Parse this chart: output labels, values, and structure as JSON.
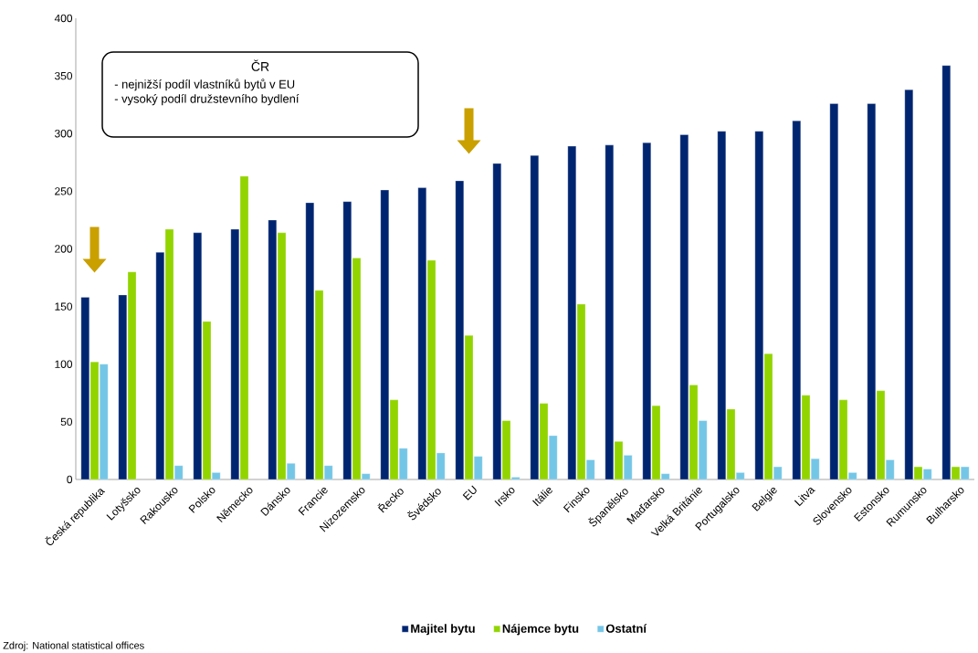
{
  "chart_data": {
    "type": "bar",
    "categories": [
      "Česká republika",
      "Lotyšsko",
      "Rakousko",
      "Polsko",
      "Německo",
      "Dánsko",
      "Francie",
      "Nizozemsko",
      "Řecko",
      "Švédsko",
      "EU",
      "Irsko",
      "Itálie",
      "Finsko",
      "Španělsko",
      "Maďarsko",
      "Velká Británie",
      "Portugalsko",
      "Belgie",
      "Litva",
      "Slovensko",
      "Estonsko",
      "Rumunsko",
      "Bulharsko"
    ],
    "series": [
      {
        "name": "Majitel bytu",
        "color": "#002570",
        "values": [
          158,
          160,
          197,
          214,
          217,
          225,
          240,
          241,
          251,
          253,
          259,
          274,
          281,
          289,
          290,
          292,
          299,
          302,
          302,
          311,
          326,
          326,
          338,
          359
        ]
      },
      {
        "name": "Nájemce bytu",
        "color": "#92d400",
        "values": [
          102,
          180,
          217,
          137,
          263,
          214,
          164,
          192,
          69,
          190,
          125,
          51,
          66,
          152,
          33,
          64,
          82,
          61,
          109,
          73,
          69,
          77,
          11,
          11
        ]
      },
      {
        "name": "Ostatní",
        "color": "#74c6e6",
        "values": [
          100,
          null,
          12,
          6,
          null,
          14,
          12,
          5,
          27,
          23,
          20,
          2,
          38,
          17,
          21,
          5,
          51,
          6,
          11,
          18,
          6,
          17,
          9,
          11
        ]
      }
    ],
    "ylim": [
      0,
      400
    ],
    "yticks": [
      0,
      50,
      100,
      150,
      200,
      250,
      300,
      350,
      400
    ],
    "legend": "bottom",
    "grid": false,
    "annotations": [
      "ČR",
      "- nejnižší podíl vlastníků bytů v EU",
      "- vysoký podíl družstevního bydlení",
      "Zdroj: National statistical offices"
    ]
  }
}
